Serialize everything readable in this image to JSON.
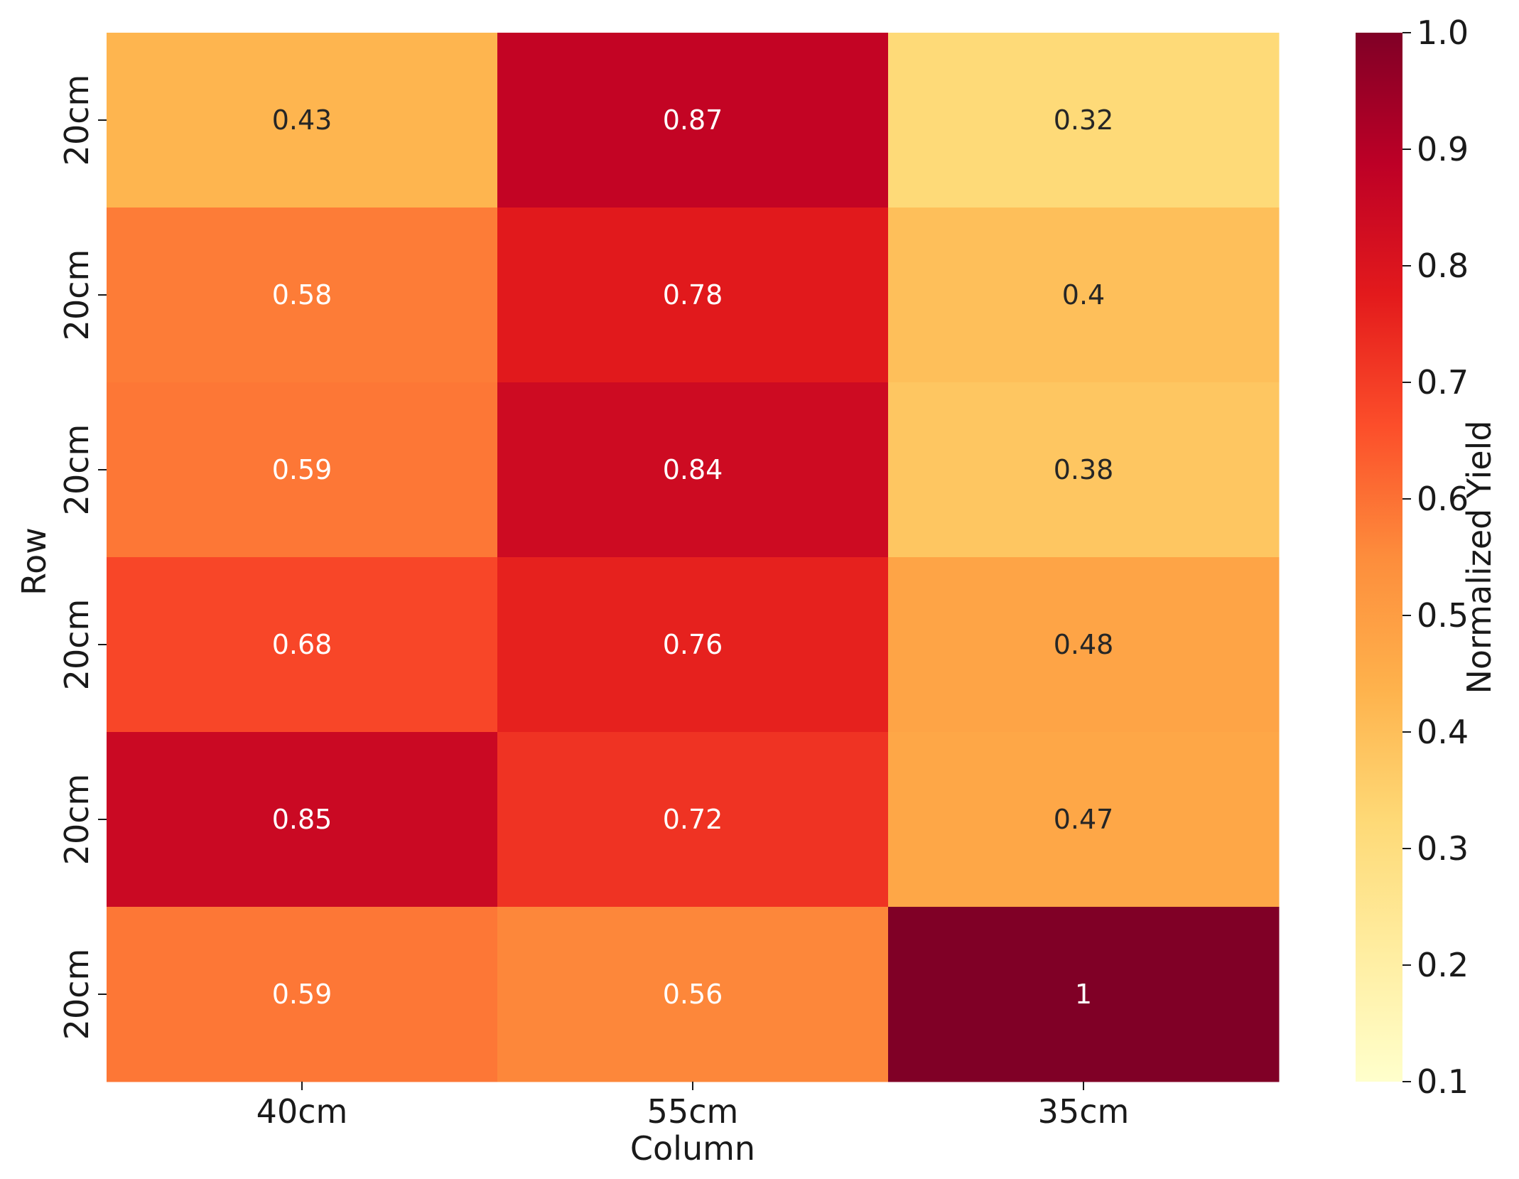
{
  "chart_data": {
    "type": "heatmap",
    "xlabel": "Column",
    "ylabel": "Row",
    "x_categories": [
      "40cm",
      "55cm",
      "35cm"
    ],
    "y_categories": [
      "20cm",
      "20cm",
      "20cm",
      "20cm",
      "20cm",
      "20cm"
    ],
    "values": [
      [
        0.43,
        0.87,
        0.32
      ],
      [
        0.58,
        0.78,
        0.4
      ],
      [
        0.59,
        0.84,
        0.38
      ],
      [
        0.68,
        0.76,
        0.48
      ],
      [
        0.85,
        0.72,
        0.47
      ],
      [
        0.59,
        0.56,
        1
      ]
    ],
    "annotations": [
      [
        "0.43",
        "0.87",
        "0.32"
      ],
      [
        "0.58",
        "0.78",
        "0.4"
      ],
      [
        "0.59",
        "0.84",
        "0.38"
      ],
      [
        "0.68",
        "0.76",
        "0.48"
      ],
      [
        "0.85",
        "0.72",
        "0.47"
      ],
      [
        "0.59",
        "0.56",
        "1"
      ]
    ],
    "colormap": "YlOrRd",
    "colorbar": {
      "label": "Normalized Yield",
      "range": [
        0.1,
        1.0
      ],
      "ticks": [
        "0.1",
        "0.2",
        "0.3",
        "0.4",
        "0.5",
        "0.6",
        "0.7",
        "0.8",
        "0.9",
        "1.0"
      ]
    }
  }
}
